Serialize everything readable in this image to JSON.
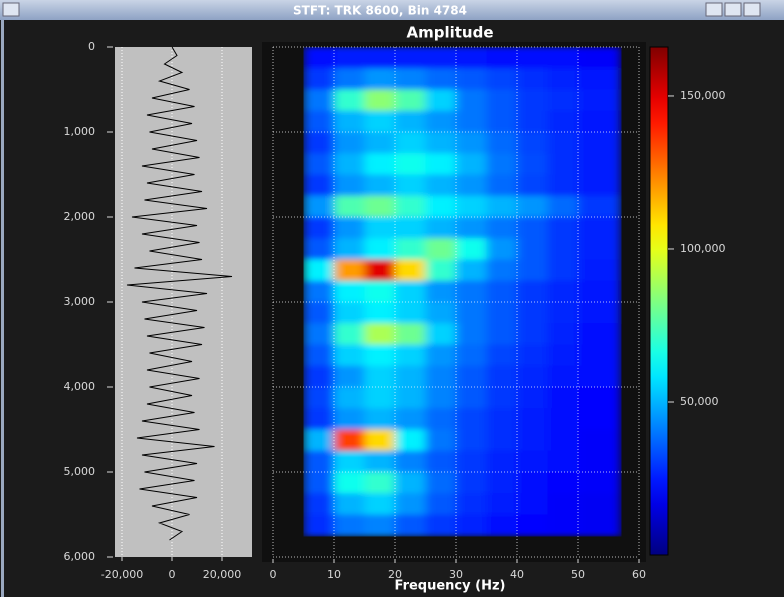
{
  "window": {
    "title": "STFT: TRK 8600, Bin 4784"
  },
  "chart_data": [
    {
      "type": "trace",
      "depth": [
        0,
        100,
        200,
        300,
        400,
        500,
        600,
        700,
        800,
        900,
        1000,
        1100,
        1200,
        1300,
        1400,
        1500,
        1600,
        1700,
        1800,
        1900,
        2000,
        2100,
        2200,
        2300,
        2400,
        2500,
        2600,
        2700,
        2800,
        2900,
        3000,
        3100,
        3200,
        3300,
        3400,
        3500,
        3600,
        3700,
        3800,
        3900,
        4000,
        4100,
        4200,
        4300,
        4400,
        4500,
        4600,
        4700,
        4800,
        4900,
        5000,
        5100,
        5200,
        5300,
        5400,
        5500,
        5600,
        5700,
        5800
      ],
      "values": [
        0,
        2000,
        -3000,
        4000,
        -5000,
        7000,
        -8000,
        9000,
        -10000,
        8000,
        -9000,
        10000,
        -8000,
        11000,
        -12000,
        9000,
        -10000,
        12000,
        -11000,
        14000,
        -16000,
        10000,
        -12000,
        11000,
        -9000,
        12000,
        -15000,
        24000,
        -18000,
        14000,
        -12000,
        10000,
        -11000,
        13000,
        -10000,
        12000,
        -9000,
        8000,
        -10000,
        11000,
        -9000,
        8000,
        -10000,
        9000,
        -12000,
        11000,
        -14000,
        17000,
        -12000,
        10000,
        -11000,
        9000,
        -13000,
        10000,
        -8000,
        7000,
        -5000,
        4000,
        -1000
      ],
      "color": "#000000",
      "xlim": [
        -22800,
        32000
      ],
      "xticks": [
        {
          "value": -20000,
          "label": "-20,000"
        },
        0,
        {
          "value": 20000,
          "label": "20,000"
        }
      ],
      "ylim": [
        0,
        6000
      ],
      "yticks": [
        0,
        {
          "value": 1000,
          "label": "1,000"
        },
        {
          "value": 2000,
          "label": "2,000"
        },
        {
          "value": 3000,
          "label": "3,000"
        },
        {
          "value": 4000,
          "label": "4,000"
        },
        {
          "value": 5000,
          "label": "5,000"
        },
        {
          "value": 6000,
          "label": "6,000"
        }
      ],
      "grid": true
    },
    {
      "type": "heatmap",
      "title": "Amplitude",
      "x_label": "Frequency (Hz)",
      "xlim": [
        0,
        60
      ],
      "xticks": [
        0,
        10,
        20,
        30,
        40,
        50,
        60
      ],
      "ylim": [
        0,
        6000
      ],
      "grid": true,
      "x_bins": [
        5,
        10,
        15,
        20,
        25,
        30,
        35,
        40,
        45,
        50,
        57
      ],
      "y_bins": [
        0,
        250,
        500,
        750,
        1000,
        1250,
        1500,
        1750,
        2000,
        2250,
        2500,
        2750,
        3000,
        3250,
        3500,
        3750,
        4000,
        4250,
        4500,
        4750,
        5000,
        5250,
        5500,
        5750
      ],
      "values": [
        [
          22000,
          25000,
          25000,
          25000,
          25000,
          24000,
          23000,
          22000,
          22000,
          20000
        ],
        [
          30000,
          40000,
          45000,
          42000,
          38000,
          35000,
          32000,
          28000,
          26000,
          24000
        ],
        [
          40000,
          70000,
          85000,
          75000,
          55000,
          40000,
          35000,
          30000,
          28000,
          25000
        ],
        [
          35000,
          50000,
          55000,
          50000,
          45000,
          40000,
          35000,
          30000,
          27000,
          24000
        ],
        [
          30000,
          45000,
          50000,
          55000,
          50000,
          45000,
          38000,
          32000,
          28000,
          25000
        ],
        [
          35000,
          50000,
          60000,
          65000,
          60000,
          50000,
          40000,
          33000,
          28000,
          25000
        ],
        [
          30000,
          45000,
          50000,
          55000,
          50000,
          45000,
          38000,
          32000,
          28000,
          25000
        ],
        [
          45000,
          75000,
          80000,
          70000,
          60000,
          55000,
          50000,
          45000,
          38000,
          30000
        ],
        [
          30000,
          45000,
          55000,
          55000,
          50000,
          45000,
          40000,
          35000,
          30000,
          26000
        ],
        [
          35000,
          50000,
          60000,
          70000,
          80000,
          65000,
          45000,
          35000,
          30000,
          26000
        ],
        [
          60000,
          120000,
          150000,
          110000,
          70000,
          50000,
          40000,
          35000,
          30000,
          25000
        ],
        [
          40000,
          60000,
          65000,
          55000,
          45000,
          40000,
          35000,
          30000,
          27000,
          24000
        ],
        [
          35000,
          55000,
          60000,
          55000,
          48000,
          40000,
          35000,
          30000,
          27000,
          24000
        ],
        [
          40000,
          70000,
          90000,
          80000,
          55000,
          40000,
          35000,
          30000,
          26000,
          23000
        ],
        [
          35000,
          55000,
          60000,
          55000,
          45000,
          38000,
          32000,
          28000,
          25000,
          22000
        ],
        [
          30000,
          45000,
          55000,
          50000,
          42000,
          35000,
          30000,
          27000,
          24000,
          22000
        ],
        [
          32000,
          50000,
          55000,
          50000,
          42000,
          35000,
          30000,
          26000,
          23000,
          21000
        ],
        [
          30000,
          45000,
          50000,
          45000,
          38000,
          32000,
          28000,
          25000,
          23000,
          21000
        ],
        [
          50000,
          135000,
          110000,
          60000,
          40000,
          32000,
          28000,
          25000,
          22000,
          20000
        ],
        [
          35000,
          55000,
          50000,
          42000,
          35000,
          30000,
          26000,
          24000,
          22000,
          20000
        ],
        [
          35000,
          65000,
          70000,
          50000,
          38000,
          30000,
          26000,
          23000,
          21000,
          20000
        ],
        [
          30000,
          50000,
          55000,
          45000,
          35000,
          28000,
          25000,
          22000,
          20000,
          19000
        ],
        [
          28000,
          40000,
          42000,
          35000,
          30000,
          26000,
          23000,
          21000,
          20000,
          19000
        ]
      ],
      "colorbar": {
        "cmap": "jet",
        "lim": [
          0,
          166000
        ],
        "ticks": [
          {
            "value": 50000,
            "label": "50,000"
          },
          {
            "value": 100000,
            "label": "100,000"
          },
          {
            "value": 150000,
            "label": "150,000"
          }
        ]
      }
    }
  ]
}
